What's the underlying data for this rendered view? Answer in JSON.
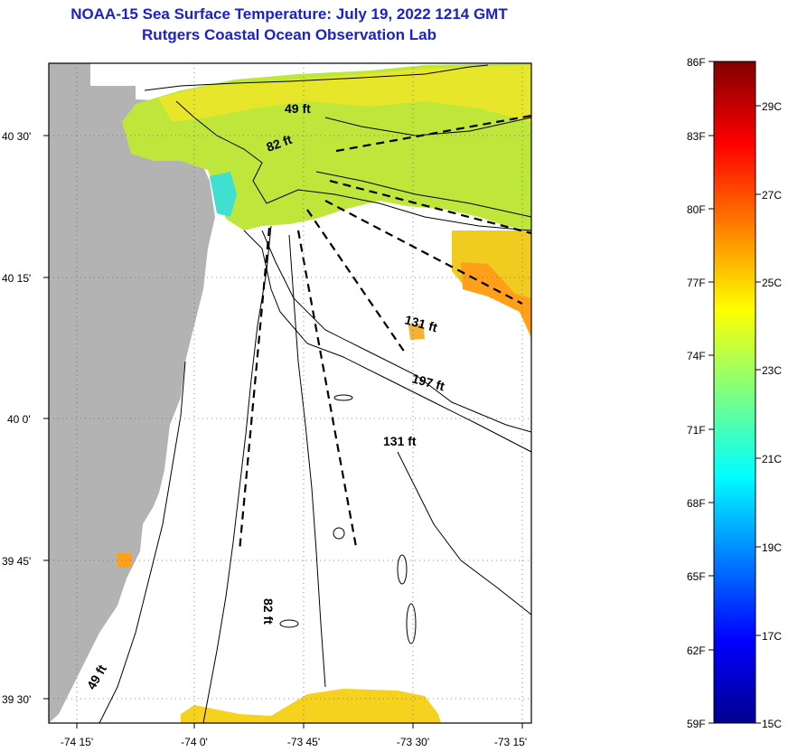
{
  "title": {
    "line1": "NOAA-15 Sea Surface Temperature:  July 19, 2022 1214 GMT",
    "line2": "Rutgers Coastal Ocean Observation Lab"
  },
  "map": {
    "lat_labels": [
      "40 30'",
      "40 15'",
      "40 0'",
      "39 45'",
      "39 30'"
    ],
    "lon_labels": [
      "-74 15'",
      "-74 0'",
      "-73 45'",
      "-73 30'",
      "-73 15'"
    ],
    "contour_labels": {
      "c49_top": "49 ft",
      "c82_top": "82 ft",
      "c131_mid": "131 ft",
      "c197": "197 ft",
      "c131_low": "131 ft",
      "c82_low": "82 ft",
      "c49_low": "49 ft"
    },
    "colors": {
      "land": "#b3b3b3",
      "no_data": "#ffffff"
    }
  },
  "colorbar": {
    "fahrenheit": [
      "86F",
      "83F",
      "80F",
      "77F",
      "74F",
      "71F",
      "68F",
      "65F",
      "62F",
      "59F"
    ],
    "celsius": [
      "29C",
      "27C",
      "25C",
      "23C",
      "21C",
      "19C",
      "17C",
      "15C"
    ]
  }
}
